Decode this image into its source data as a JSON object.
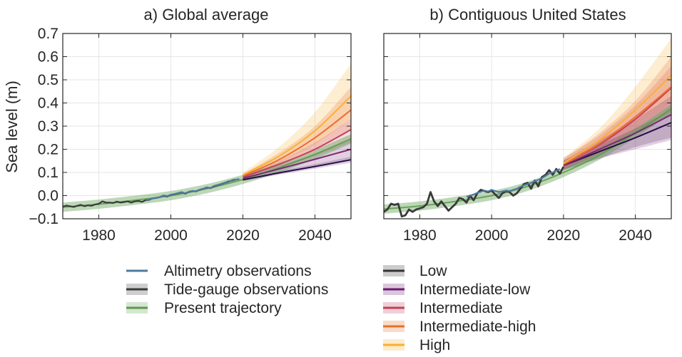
{
  "figure": {
    "ylabel": "Sea level (m)",
    "legend_left": [
      {
        "label": "Altimetry observations",
        "color": "#4f7aa0",
        "band": false
      },
      {
        "label": "Tide-gauge observations",
        "color": "#3a3a3a",
        "band": true
      },
      {
        "label": "Present trajectory",
        "color": "#5a9a4a",
        "band": true
      }
    ],
    "legend_right": [
      {
        "label": "Low",
        "color": "#333333",
        "band": true
      },
      {
        "label": "Intermediate-low",
        "color": "#6b1a6e",
        "band": true
      },
      {
        "label": "Intermediate",
        "color": "#c0405a",
        "band": true
      },
      {
        "label": "Intermediate-high",
        "color": "#e8702a",
        "band": true
      },
      {
        "label": "High",
        "color": "#f7b032",
        "band": true
      }
    ],
    "colors": {
      "altimetry": "#4f7aa0",
      "tide_gauge": "#3a3a3a",
      "trajectory": "#5a9a4a",
      "low": "#2c0a4a",
      "intermediate_low": "#7a2a70",
      "intermediate": "#c8405a",
      "intermediate_high": "#ec6e30",
      "high": "#f8b133"
    }
  },
  "chart_data": [
    {
      "type": "line",
      "title": "a) Global average",
      "xlim": [
        1970,
        2050
      ],
      "ylim": [
        -0.1,
        0.7
      ],
      "xticks": [
        1980,
        2000,
        2020,
        2040
      ],
      "yticks": [
        -0.1,
        0.0,
        0.1,
        0.2,
        0.3,
        0.4,
        0.5,
        0.6,
        0.7
      ],
      "ytick_labels": [
        "−0.1",
        "0.0",
        "0.1",
        "0.2",
        "0.3",
        "0.4",
        "0.5",
        "0.6",
        "0.7"
      ],
      "grid": true,
      "observations": {
        "tide_gauge": {
          "x": [
            1970,
            1971,
            1972,
            1973,
            1974,
            1975,
            1976,
            1977,
            1978,
            1979,
            1980,
            1981,
            1982,
            1983,
            1984,
            1985,
            1986,
            1987,
            1988,
            1989,
            1990,
            1991,
            1992,
            1993,
            1994,
            1995,
            1996,
            1997,
            1998,
            1999,
            2000,
            2001,
            2002,
            2003,
            2004,
            2005,
            2006,
            2007,
            2008,
            2009,
            2010,
            2011,
            2012,
            2013,
            2014,
            2015,
            2016,
            2017,
            2018
          ],
          "y": [
            -0.048,
            -0.043,
            -0.046,
            -0.049,
            -0.044,
            -0.04,
            -0.046,
            -0.042,
            -0.044,
            -0.038,
            -0.035,
            -0.025,
            -0.03,
            -0.03,
            -0.032,
            -0.026,
            -0.03,
            -0.028,
            -0.025,
            -0.03,
            -0.025,
            -0.023,
            -0.027,
            -0.02,
            -0.018,
            -0.012,
            -0.01,
            -0.006,
            0.0,
            -0.004,
            0.003,
            0.006,
            0.01,
            0.014,
            0.008,
            0.016,
            0.02,
            0.018,
            0.025,
            0.03,
            0.035,
            0.032,
            0.04,
            0.045,
            0.05,
            0.055,
            0.06,
            0.066,
            0.07
          ]
        },
        "altimetry": {
          "x": [
            1993,
            1994,
            1995,
            1996,
            1997,
            1998,
            1999,
            2000,
            2001,
            2002,
            2003,
            2004,
            2005,
            2006,
            2007,
            2008,
            2009,
            2010,
            2011,
            2012,
            2013,
            2014,
            2015,
            2016,
            2017,
            2018,
            2019
          ],
          "y": [
            -0.018,
            -0.016,
            -0.012,
            -0.01,
            -0.006,
            0.001,
            -0.002,
            0.004,
            0.007,
            0.011,
            0.015,
            0.01,
            0.017,
            0.02,
            0.019,
            0.026,
            0.03,
            0.036,
            0.033,
            0.042,
            0.046,
            0.051,
            0.056,
            0.062,
            0.064,
            0.069,
            0.072
          ]
        },
        "trajectory": {
          "x": [
            1970,
            1980,
            1990,
            2000,
            2010,
            2020,
            2030,
            2040,
            2050
          ],
          "y": [
            -0.05,
            -0.037,
            -0.02,
            0.0,
            0.03,
            0.07,
            0.12,
            0.178,
            0.245
          ],
          "band": 0.02
        }
      },
      "scenarios": [
        {
          "key": "low",
          "x": [
            2020,
            2030,
            2040,
            2050
          ],
          "y": [
            0.068,
            0.098,
            0.126,
            0.155
          ],
          "lower": [
            0.063,
            0.09,
            0.116,
            0.142
          ],
          "upper": [
            0.073,
            0.106,
            0.136,
            0.168
          ]
        },
        {
          "key": "intermediate_low",
          "x": [
            2020,
            2030,
            2040,
            2050
          ],
          "y": [
            0.075,
            0.115,
            0.157,
            0.2
          ],
          "lower": [
            0.07,
            0.1,
            0.13,
            0.16
          ],
          "upper": [
            0.08,
            0.13,
            0.18,
            0.24
          ]
        },
        {
          "key": "intermediate",
          "x": [
            2020,
            2030,
            2040,
            2050
          ],
          "y": [
            0.08,
            0.135,
            0.2,
            0.285
          ],
          "lower": [
            0.075,
            0.12,
            0.17,
            0.23
          ],
          "upper": [
            0.085,
            0.15,
            0.23,
            0.33
          ]
        },
        {
          "key": "intermediate_high",
          "x": [
            2020,
            2030,
            2040,
            2050
          ],
          "y": [
            0.085,
            0.155,
            0.25,
            0.37
          ],
          "lower": [
            0.078,
            0.13,
            0.2,
            0.28
          ],
          "upper": [
            0.093,
            0.185,
            0.3,
            0.47
          ]
        },
        {
          "key": "high",
          "x": [
            2020,
            2030,
            2040,
            2050
          ],
          "y": [
            0.09,
            0.17,
            0.28,
            0.43
          ],
          "lower": [
            0.08,
            0.14,
            0.22,
            0.33
          ],
          "upper": [
            0.1,
            0.21,
            0.36,
            0.57
          ]
        }
      ]
    },
    {
      "type": "line",
      "title": "b) Contiguous United States",
      "xlim": [
        1970,
        2050
      ],
      "ylim": [
        -0.1,
        0.7
      ],
      "xticks": [
        1980,
        2000,
        2020,
        2040
      ],
      "yticks": [
        -0.1,
        0.0,
        0.1,
        0.2,
        0.3,
        0.4,
        0.5,
        0.6,
        0.7
      ],
      "grid": true,
      "observations": {
        "tide_gauge": {
          "x": [
            1970,
            1971,
            1972,
            1973,
            1974,
            1975,
            1976,
            1977,
            1978,
            1979,
            1980,
            1981,
            1982,
            1983,
            1984,
            1985,
            1986,
            1987,
            1988,
            1989,
            1990,
            1991,
            1992,
            1993,
            1994,
            1995,
            1996,
            1997,
            1998,
            1999,
            2000,
            2001,
            2002,
            2003,
            2004,
            2005,
            2006,
            2007,
            2008,
            2009,
            2010,
            2011,
            2012,
            2013,
            2014,
            2015,
            2016,
            2017,
            2018,
            2019,
            2020
          ],
          "y": [
            -0.07,
            -0.06,
            -0.035,
            -0.04,
            -0.035,
            -0.09,
            -0.085,
            -0.06,
            -0.07,
            -0.06,
            -0.055,
            -0.05,
            -0.035,
            0.015,
            -0.025,
            -0.045,
            -0.025,
            -0.045,
            -0.065,
            -0.05,
            -0.035,
            -0.01,
            -0.015,
            -0.03,
            0.0,
            -0.02,
            0.01,
            0.025,
            0.02,
            0.015,
            0.022,
            0.005,
            -0.01,
            0.01,
            0.02,
            0.015,
            0.0,
            0.01,
            0.03,
            0.05,
            0.055,
            0.03,
            0.065,
            0.04,
            0.08,
            0.09,
            0.11,
            0.09,
            0.115,
            0.095,
            0.125
          ]
        },
        "altimetry": {
          "x": [
            1993,
            1994,
            1995,
            1996,
            1997,
            1998,
            1999,
            2000,
            2001,
            2002,
            2003,
            2004,
            2005,
            2006,
            2007,
            2008,
            2009,
            2010,
            2011,
            2012,
            2013,
            2014,
            2015,
            2016,
            2017,
            2018,
            2019
          ],
          "y": [
            -0.005,
            0.0,
            0.005,
            0.012,
            0.016,
            0.022,
            0.018,
            0.025,
            0.02,
            0.015,
            0.018,
            0.022,
            0.02,
            0.025,
            0.03,
            0.038,
            0.045,
            0.05,
            0.055,
            0.062,
            0.068,
            0.075,
            0.085,
            0.095,
            0.1,
            0.108,
            0.115
          ]
        },
        "trajectory": {
          "x": [
            1970,
            1980,
            1990,
            2000,
            2010,
            2020,
            2030,
            2040,
            2050
          ],
          "y": [
            -0.058,
            -0.045,
            -0.025,
            0.0,
            0.04,
            0.1,
            0.175,
            0.27,
            0.375
          ],
          "band": 0.02
        }
      },
      "scenarios": [
        {
          "key": "low",
          "x": [
            2020,
            2030,
            2040,
            2050
          ],
          "y": [
            0.13,
            0.19,
            0.25,
            0.315
          ],
          "lower": [
            0.11,
            0.16,
            0.21,
            0.25
          ],
          "upper": [
            0.15,
            0.22,
            0.29,
            0.37
          ]
        },
        {
          "key": "intermediate_low",
          "x": [
            2020,
            2030,
            2040,
            2050
          ],
          "y": [
            0.13,
            0.2,
            0.27,
            0.35
          ],
          "lower": [
            0.11,
            0.16,
            0.2,
            0.24
          ],
          "upper": [
            0.15,
            0.24,
            0.33,
            0.43
          ]
        },
        {
          "key": "intermediate",
          "x": [
            2020,
            2030,
            2040,
            2050
          ],
          "y": [
            0.135,
            0.22,
            0.33,
            0.465
          ],
          "lower": [
            0.11,
            0.18,
            0.27,
            0.37
          ],
          "upper": [
            0.16,
            0.26,
            0.39,
            0.56
          ]
        },
        {
          "key": "intermediate_high",
          "x": [
            2020,
            2030,
            2040,
            2050
          ],
          "y": [
            0.135,
            0.225,
            0.34,
            0.47
          ],
          "lower": [
            0.11,
            0.18,
            0.27,
            0.36
          ],
          "upper": [
            0.16,
            0.27,
            0.41,
            0.6
          ]
        },
        {
          "key": "high",
          "x": [
            2020,
            2030,
            2040,
            2050
          ],
          "y": [
            0.14,
            0.24,
            0.37,
            0.52
          ],
          "lower": [
            0.115,
            0.19,
            0.29,
            0.4
          ],
          "upper": [
            0.165,
            0.29,
            0.47,
            0.68
          ]
        }
      ]
    }
  ]
}
